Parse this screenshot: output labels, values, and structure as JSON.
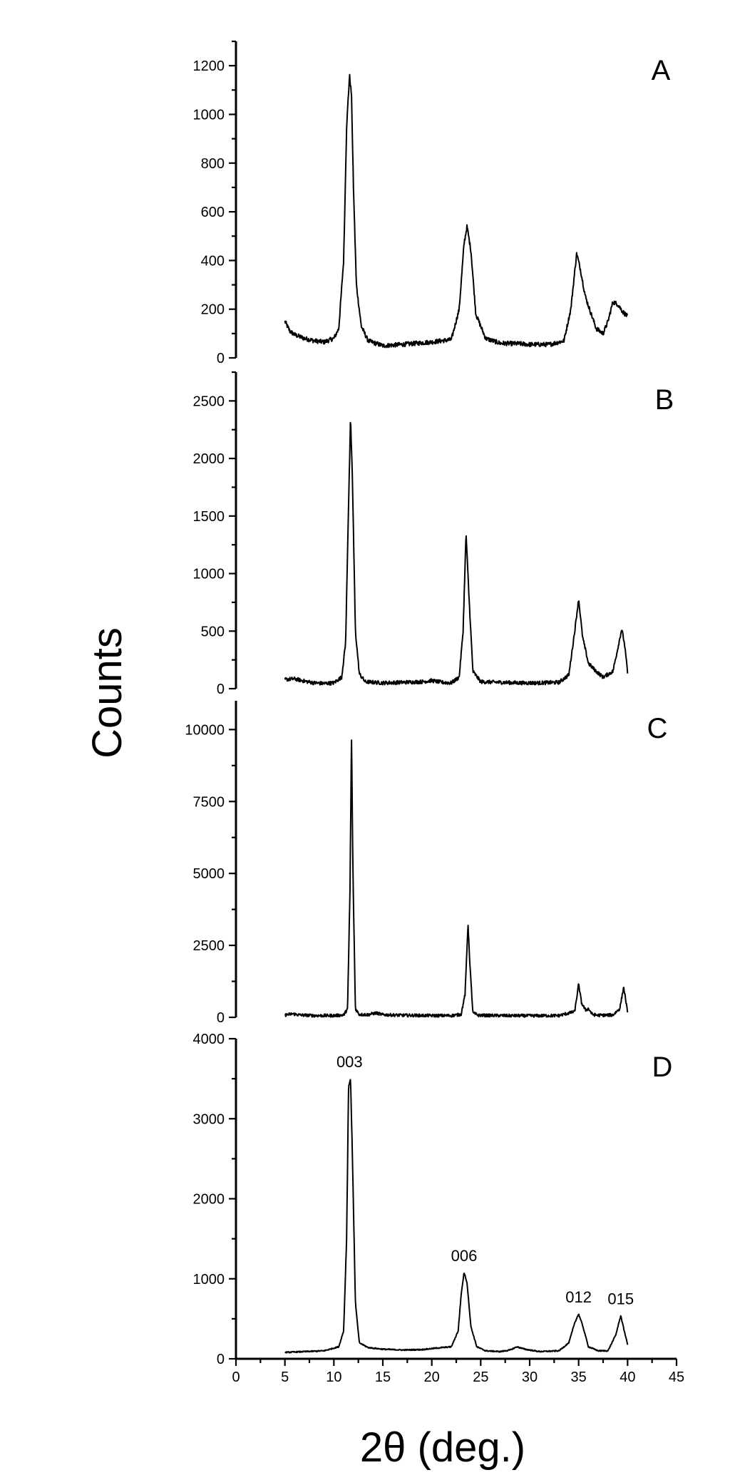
{
  "chart_data": {
    "type": "line",
    "xlabel": "2θ (deg.)",
    "ylabel": "Counts",
    "xlim": [
      0,
      45
    ],
    "x_ticks": [
      0,
      5,
      10,
      15,
      20,
      25,
      30,
      35,
      40,
      45
    ],
    "x_tick_labels": [
      "0",
      "5",
      "10",
      "15",
      "20",
      "25",
      "30",
      "35",
      "40",
      "45"
    ],
    "x_data_range": [
      5,
      40
    ],
    "panels": [
      {
        "label": "A",
        "ylim": [
          0,
          1300
        ],
        "y_ticks": [
          0,
          200,
          400,
          600,
          800,
          1000,
          1200
        ],
        "y_tick_labels": [
          "0",
          "200",
          "400",
          "600",
          "800",
          "1000",
          "1200"
        ],
        "noise": 12,
        "series": {
          "x": [
            5,
            5.5,
            6,
            7,
            8,
            9,
            10,
            10.5,
            11,
            11.3,
            11.6,
            11.8,
            12,
            12.3,
            12.8,
            13.5,
            15,
            17,
            19,
            20,
            22,
            22.8,
            23.3,
            23.6,
            24,
            24.5,
            25.5,
            27,
            29,
            30,
            32,
            33.5,
            34.2,
            34.8,
            35.2,
            35.7,
            36.2,
            36.8,
            37.5,
            38,
            38.5,
            39,
            39.5,
            40
          ],
          "y": [
            150,
            110,
            95,
            80,
            70,
            65,
            80,
            120,
            400,
            950,
            1160,
            1080,
            700,
            300,
            130,
            70,
            50,
            55,
            62,
            65,
            75,
            200,
            470,
            540,
            440,
            180,
            80,
            60,
            58,
            55,
            55,
            70,
            200,
            430,
            360,
            250,
            190,
            120,
            100,
            150,
            230,
            220,
            190,
            170
          ]
        },
        "annotations": []
      },
      {
        "label": "B",
        "ylim": [
          0,
          2750
        ],
        "y_ticks": [
          0,
          500,
          1000,
          1500,
          2000,
          2500
        ],
        "y_tick_labels": [
          "0",
          "500",
          "1000",
          "1500",
          "2000",
          "2500"
        ],
        "noise": 10,
        "series": {
          "x": [
            5,
            6,
            7,
            8,
            9,
            10,
            10.8,
            11.2,
            11.5,
            11.7,
            11.9,
            12.2,
            12.6,
            13.2,
            15,
            17,
            19,
            20,
            21,
            22,
            22.8,
            23.2,
            23.5,
            23.8,
            24.2,
            25,
            27,
            29,
            31,
            33,
            34,
            34.6,
            35,
            35.4,
            36,
            36.8,
            37.5,
            38.5,
            39,
            39.4,
            39.7,
            40
          ],
          "y": [
            80,
            85,
            65,
            50,
            45,
            50,
            100,
            400,
            1600,
            2350,
            1800,
            500,
            130,
            60,
            50,
            55,
            60,
            70,
            55,
            50,
            100,
            500,
            1350,
            800,
            150,
            60,
            55,
            50,
            50,
            55,
            120,
            500,
            780,
            450,
            220,
            150,
            100,
            150,
            350,
            520,
            380,
            140
          ]
        },
        "annotations": []
      },
      {
        "label": "C",
        "ylim": [
          0,
          11000
        ],
        "y_ticks": [
          0,
          2500,
          5000,
          7500,
          10000
        ],
        "y_tick_labels": [
          "0",
          "2500",
          "5000",
          "7500",
          "10000"
        ],
        "noise": 8,
        "series": {
          "x": [
            5,
            5.8,
            6.5,
            8,
            10,
            11,
            11.4,
            11.65,
            11.8,
            11.95,
            12.2,
            12.6,
            13.5,
            14.3,
            15,
            17,
            20,
            22,
            23,
            23.4,
            23.7,
            23.9,
            24.2,
            24.8,
            27,
            30,
            33,
            34.6,
            35,
            35.3,
            35.7,
            36,
            36.4,
            37,
            38.5,
            39.2,
            39.6,
            39.9,
            40
          ],
          "y": [
            80,
            120,
            80,
            60,
            60,
            80,
            300,
            4500,
            9800,
            5000,
            300,
            100,
            90,
            150,
            90,
            70,
            60,
            60,
            100,
            800,
            3250,
            1800,
            150,
            70,
            60,
            55,
            60,
            200,
            1150,
            500,
            250,
            300,
            100,
            70,
            80,
            300,
            1050,
            400,
            120
          ]
        },
        "annotations": []
      },
      {
        "label": "D",
        "ylim": [
          0,
          4000
        ],
        "y_ticks": [
          0,
          1000,
          2000,
          3000,
          4000
        ],
        "y_tick_labels": [
          "0",
          "1000",
          "2000",
          "3000",
          "4000"
        ],
        "minor_ticks": true,
        "noise": 3,
        "series": {
          "x": [
            5,
            7,
            9,
            10.5,
            11,
            11.3,
            11.5,
            11.7,
            11.9,
            12.2,
            12.6,
            13.5,
            15,
            17,
            19,
            21,
            22,
            22.7,
            23,
            23.3,
            23.6,
            24,
            24.6,
            25.5,
            27,
            28,
            28.7,
            29.5,
            31,
            33,
            34,
            34.6,
            35,
            35.4,
            36,
            37,
            38,
            38.8,
            39.3,
            39.6,
            40
          ],
          "y": [
            80,
            90,
            100,
            150,
            350,
            1500,
            3400,
            3500,
            2500,
            700,
            200,
            140,
            120,
            110,
            115,
            140,
            150,
            350,
            800,
            1080,
            950,
            400,
            150,
            100,
            90,
            110,
            150,
            120,
            90,
            100,
            200,
            450,
            560,
            420,
            150,
            100,
            100,
            300,
            540,
            380,
            180
          ]
        },
        "annotations": [
          {
            "text": "003",
            "x": 11.6,
            "y": 3500
          },
          {
            "text": "006",
            "x": 23.3,
            "y": 1080
          },
          {
            "text": "012",
            "x": 35.0,
            "y": 560
          },
          {
            "text": "015",
            "x": 39.3,
            "y": 540
          }
        ]
      }
    ]
  }
}
